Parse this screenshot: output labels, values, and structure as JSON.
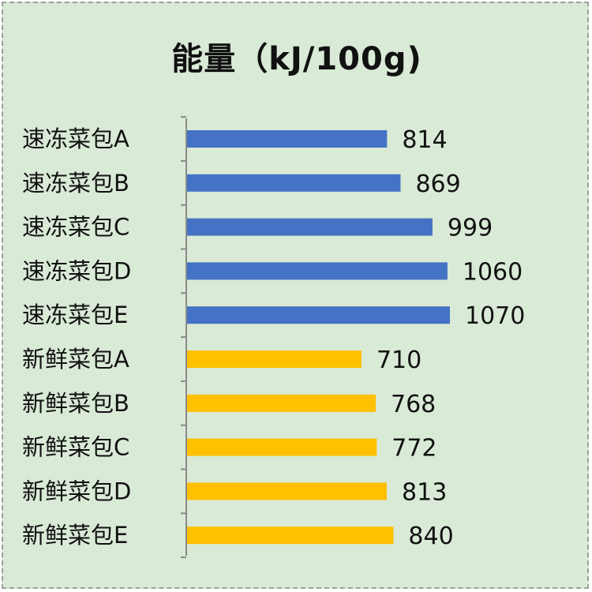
{
  "chart_data": {
    "type": "bar",
    "orientation": "horizontal",
    "title": "能量（kJ/100g)",
    "categories": [
      "速冻菜包A",
      "速冻菜包B",
      "速冻菜包C",
      "速冻菜包D",
      "速冻菜包E",
      "新鲜菜包A",
      "新鲜菜包B",
      "新鲜菜包C",
      "新鲜菜包D",
      "新鲜菜包E"
    ],
    "values": [
      814,
      869,
      999,
      1060,
      1070,
      710,
      768,
      772,
      813,
      840
    ],
    "colors": [
      "#4472c4",
      "#4472c4",
      "#4472c4",
      "#4472c4",
      "#4472c4",
      "#ffc000",
      "#ffc000",
      "#ffc000",
      "#ffc000",
      "#ffc000"
    ],
    "xlim": [
      0,
      1070
    ],
    "grid": false,
    "background": "#d9ead6"
  }
}
